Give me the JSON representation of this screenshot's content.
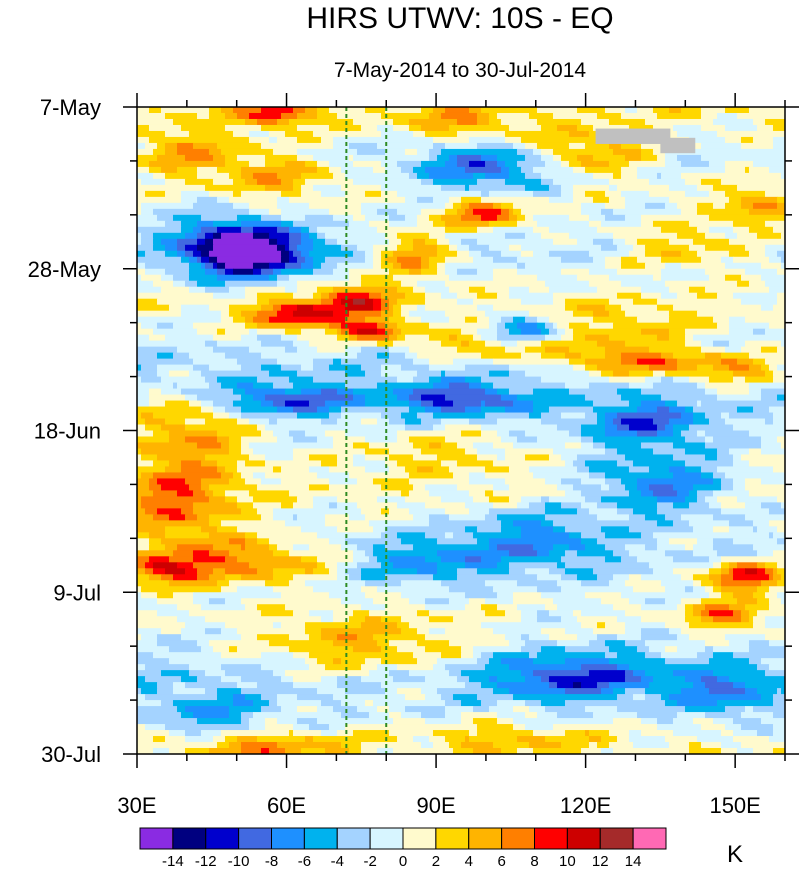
{
  "chart_data": {
    "type": "heatmap",
    "title": "HIRS UTWV: 10S - EQ",
    "subtitle": "7-May-2014 to 30-Jul-2014",
    "x_axis": {
      "range": [
        30,
        160
      ],
      "ticks": [
        30,
        60,
        90,
        120,
        150
      ],
      "tick_labels": [
        "30E",
        "60E",
        "90E",
        "120E",
        "150E"
      ],
      "minor_step": 10
    },
    "y_axis": {
      "range": [
        0,
        84
      ],
      "direction": "down",
      "ticks": [
        0,
        21,
        42,
        63,
        84
      ],
      "tick_labels": [
        "7-May",
        "28-May",
        "18-Jun",
        "9-Jul",
        "30-Jul"
      ],
      "minor_step": 7
    },
    "reference_lines": [
      {
        "x": 72,
        "color": "#2e8b22",
        "style": "dashed"
      },
      {
        "x": 80,
        "color": "#2e8b22",
        "style": "dashed"
      }
    ],
    "missing_color": "#c0c0c0",
    "missing_regions": [
      {
        "x": [
          122,
          137
        ],
        "y": [
          2.8,
          4.8
        ]
      },
      {
        "x": [
          135,
          142
        ],
        "y": [
          4.0,
          6.0
        ]
      }
    ],
    "colorbar": {
      "unit": "K",
      "levels": [
        -16,
        -14,
        -12,
        -10,
        -8,
        -6,
        -4,
        -2,
        0,
        2,
        4,
        6,
        8,
        10,
        12,
        14,
        16
      ],
      "labels": [
        "-14",
        "-12",
        "-10",
        "-8",
        "-6",
        "-4",
        "-2",
        "0",
        "2",
        "4",
        "6",
        "8",
        "10",
        "12",
        "14"
      ],
      "colors": [
        "#8a2be2",
        "#000080",
        "#0000cd",
        "#4169e1",
        "#1e90ff",
        "#00b2ee",
        "#a4d3ff",
        "#d7f5ff",
        "#fffacd",
        "#ffd700",
        "#ffb400",
        "#ff7f00",
        "#ff0000",
        "#cd0000",
        "#a52a2a",
        "#ff69b4"
      ]
    },
    "field": {
      "description": "Hovmoller of anomaly (K), longitude vs day since 7-May; approximated as background value plus propagating features",
      "background": [
        {
          "day": 0,
          "value": 2
        },
        {
          "day": 6,
          "value": -1
        },
        {
          "day": 12,
          "value": 0
        },
        {
          "day": 18,
          "value": -2
        },
        {
          "day": 26,
          "value": 1
        },
        {
          "day": 34,
          "value": -3
        },
        {
          "day": 42,
          "value": -1
        },
        {
          "day": 50,
          "value": 1
        },
        {
          "day": 58,
          "value": -2
        },
        {
          "day": 66,
          "value": 0
        },
        {
          "day": 74,
          "value": -3
        },
        {
          "day": 84,
          "value": 1
        }
      ],
      "features": [
        {
          "lon": 58,
          "day": 1,
          "value": 9,
          "width_lon": 7,
          "width_day": 1.5
        },
        {
          "lon": 40,
          "day": 6,
          "value": 6,
          "width_lon": 12,
          "width_day": 3
        },
        {
          "lon": 58,
          "day": 9,
          "value": 5,
          "width_lon": 12,
          "width_day": 3
        },
        {
          "lon": 95,
          "day": 2,
          "value": 5,
          "width_lon": 10,
          "width_day": 2
        },
        {
          "lon": 100,
          "day": 14,
          "value": 9,
          "width_lon": 8,
          "width_day": 2
        },
        {
          "lon": 85,
          "day": 19,
          "value": 7,
          "width_lon": 8,
          "width_day": 3
        },
        {
          "lon": 74,
          "day": 25,
          "value": 9,
          "width_lon": 8,
          "width_day": 2
        },
        {
          "lon": 62,
          "day": 27,
          "value": 10,
          "width_lon": 9,
          "width_day": 2
        },
        {
          "lon": 77,
          "day": 29,
          "value": 11,
          "width_lon": 7,
          "width_day": 1.5
        },
        {
          "lon": 55,
          "day": 19,
          "value": -11,
          "width_lon": 12,
          "width_day": 3
        },
        {
          "lon": 48,
          "day": 18,
          "value": -9,
          "width_lon": 10,
          "width_day": 4
        },
        {
          "lon": 100,
          "day": 8,
          "value": -8,
          "width_lon": 14,
          "width_day": 3
        },
        {
          "lon": 120,
          "day": 6,
          "value": 6,
          "width_lon": 12,
          "width_day": 3
        },
        {
          "lon": 155,
          "day": 13,
          "value": 6,
          "width_lon": 8,
          "width_day": 3
        },
        {
          "lon": 140,
          "day": 18,
          "value": 5,
          "width_lon": 14,
          "width_day": 3
        },
        {
          "lon": 125,
          "day": 29,
          "value": 4,
          "width_lon": 18,
          "width_day": 3
        },
        {
          "lon": 100,
          "day": 31,
          "value": 6,
          "width_lon": 12,
          "width_day": 2
        },
        {
          "lon": 128,
          "day": 33,
          "value": 9,
          "width_lon": 14,
          "width_day": 2
        },
        {
          "lon": 150,
          "day": 34,
          "value": 8,
          "width_lon": 12,
          "width_day": 2
        },
        {
          "lon": 108,
          "day": 29,
          "value": -8,
          "width_lon": 8,
          "width_day": 2
        },
        {
          "lon": 95,
          "day": 38,
          "value": -9,
          "width_lon": 14,
          "width_day": 2
        },
        {
          "lon": 60,
          "day": 38,
          "value": -8,
          "width_lon": 14,
          "width_day": 2
        },
        {
          "lon": 132,
          "day": 41,
          "value": -8,
          "width_lon": 12,
          "width_day": 3
        },
        {
          "lon": 40,
          "day": 42,
          "value": 6,
          "width_lon": 12,
          "width_day": 5
        },
        {
          "lon": 38,
          "day": 52,
          "value": 7,
          "width_lon": 12,
          "width_day": 6
        },
        {
          "lon": 52,
          "day": 59,
          "value": 8,
          "width_lon": 16,
          "width_day": 3
        },
        {
          "lon": 35,
          "day": 60,
          "value": 9,
          "width_lon": 8,
          "width_day": 2
        },
        {
          "lon": 90,
          "day": 45,
          "value": 3,
          "width_lon": 16,
          "width_day": 3
        },
        {
          "lon": 135,
          "day": 49,
          "value": -8,
          "width_lon": 14,
          "width_day": 4
        },
        {
          "lon": 110,
          "day": 56,
          "value": -6,
          "width_lon": 14,
          "width_day": 4
        },
        {
          "lon": 88,
          "day": 59,
          "value": -5,
          "width_lon": 12,
          "width_day": 3
        },
        {
          "lon": 152,
          "day": 61,
          "value": 11,
          "width_lon": 8,
          "width_day": 2
        },
        {
          "lon": 148,
          "day": 66,
          "value": 7,
          "width_lon": 8,
          "width_day": 2
        },
        {
          "lon": 75,
          "day": 70,
          "value": 6,
          "width_lon": 20,
          "width_day": 4
        },
        {
          "lon": 118,
          "day": 74,
          "value": -8,
          "width_lon": 16,
          "width_day": 3
        },
        {
          "lon": 148,
          "day": 76,
          "value": -6,
          "width_lon": 10,
          "width_day": 3
        },
        {
          "lon": 45,
          "day": 79,
          "value": -5,
          "width_lon": 12,
          "width_day": 3
        },
        {
          "lon": 55,
          "day": 83,
          "value": 6,
          "width_lon": 16,
          "width_day": 2
        },
        {
          "lon": 105,
          "day": 82,
          "value": 4,
          "width_lon": 18,
          "width_day": 2
        }
      ]
    }
  }
}
